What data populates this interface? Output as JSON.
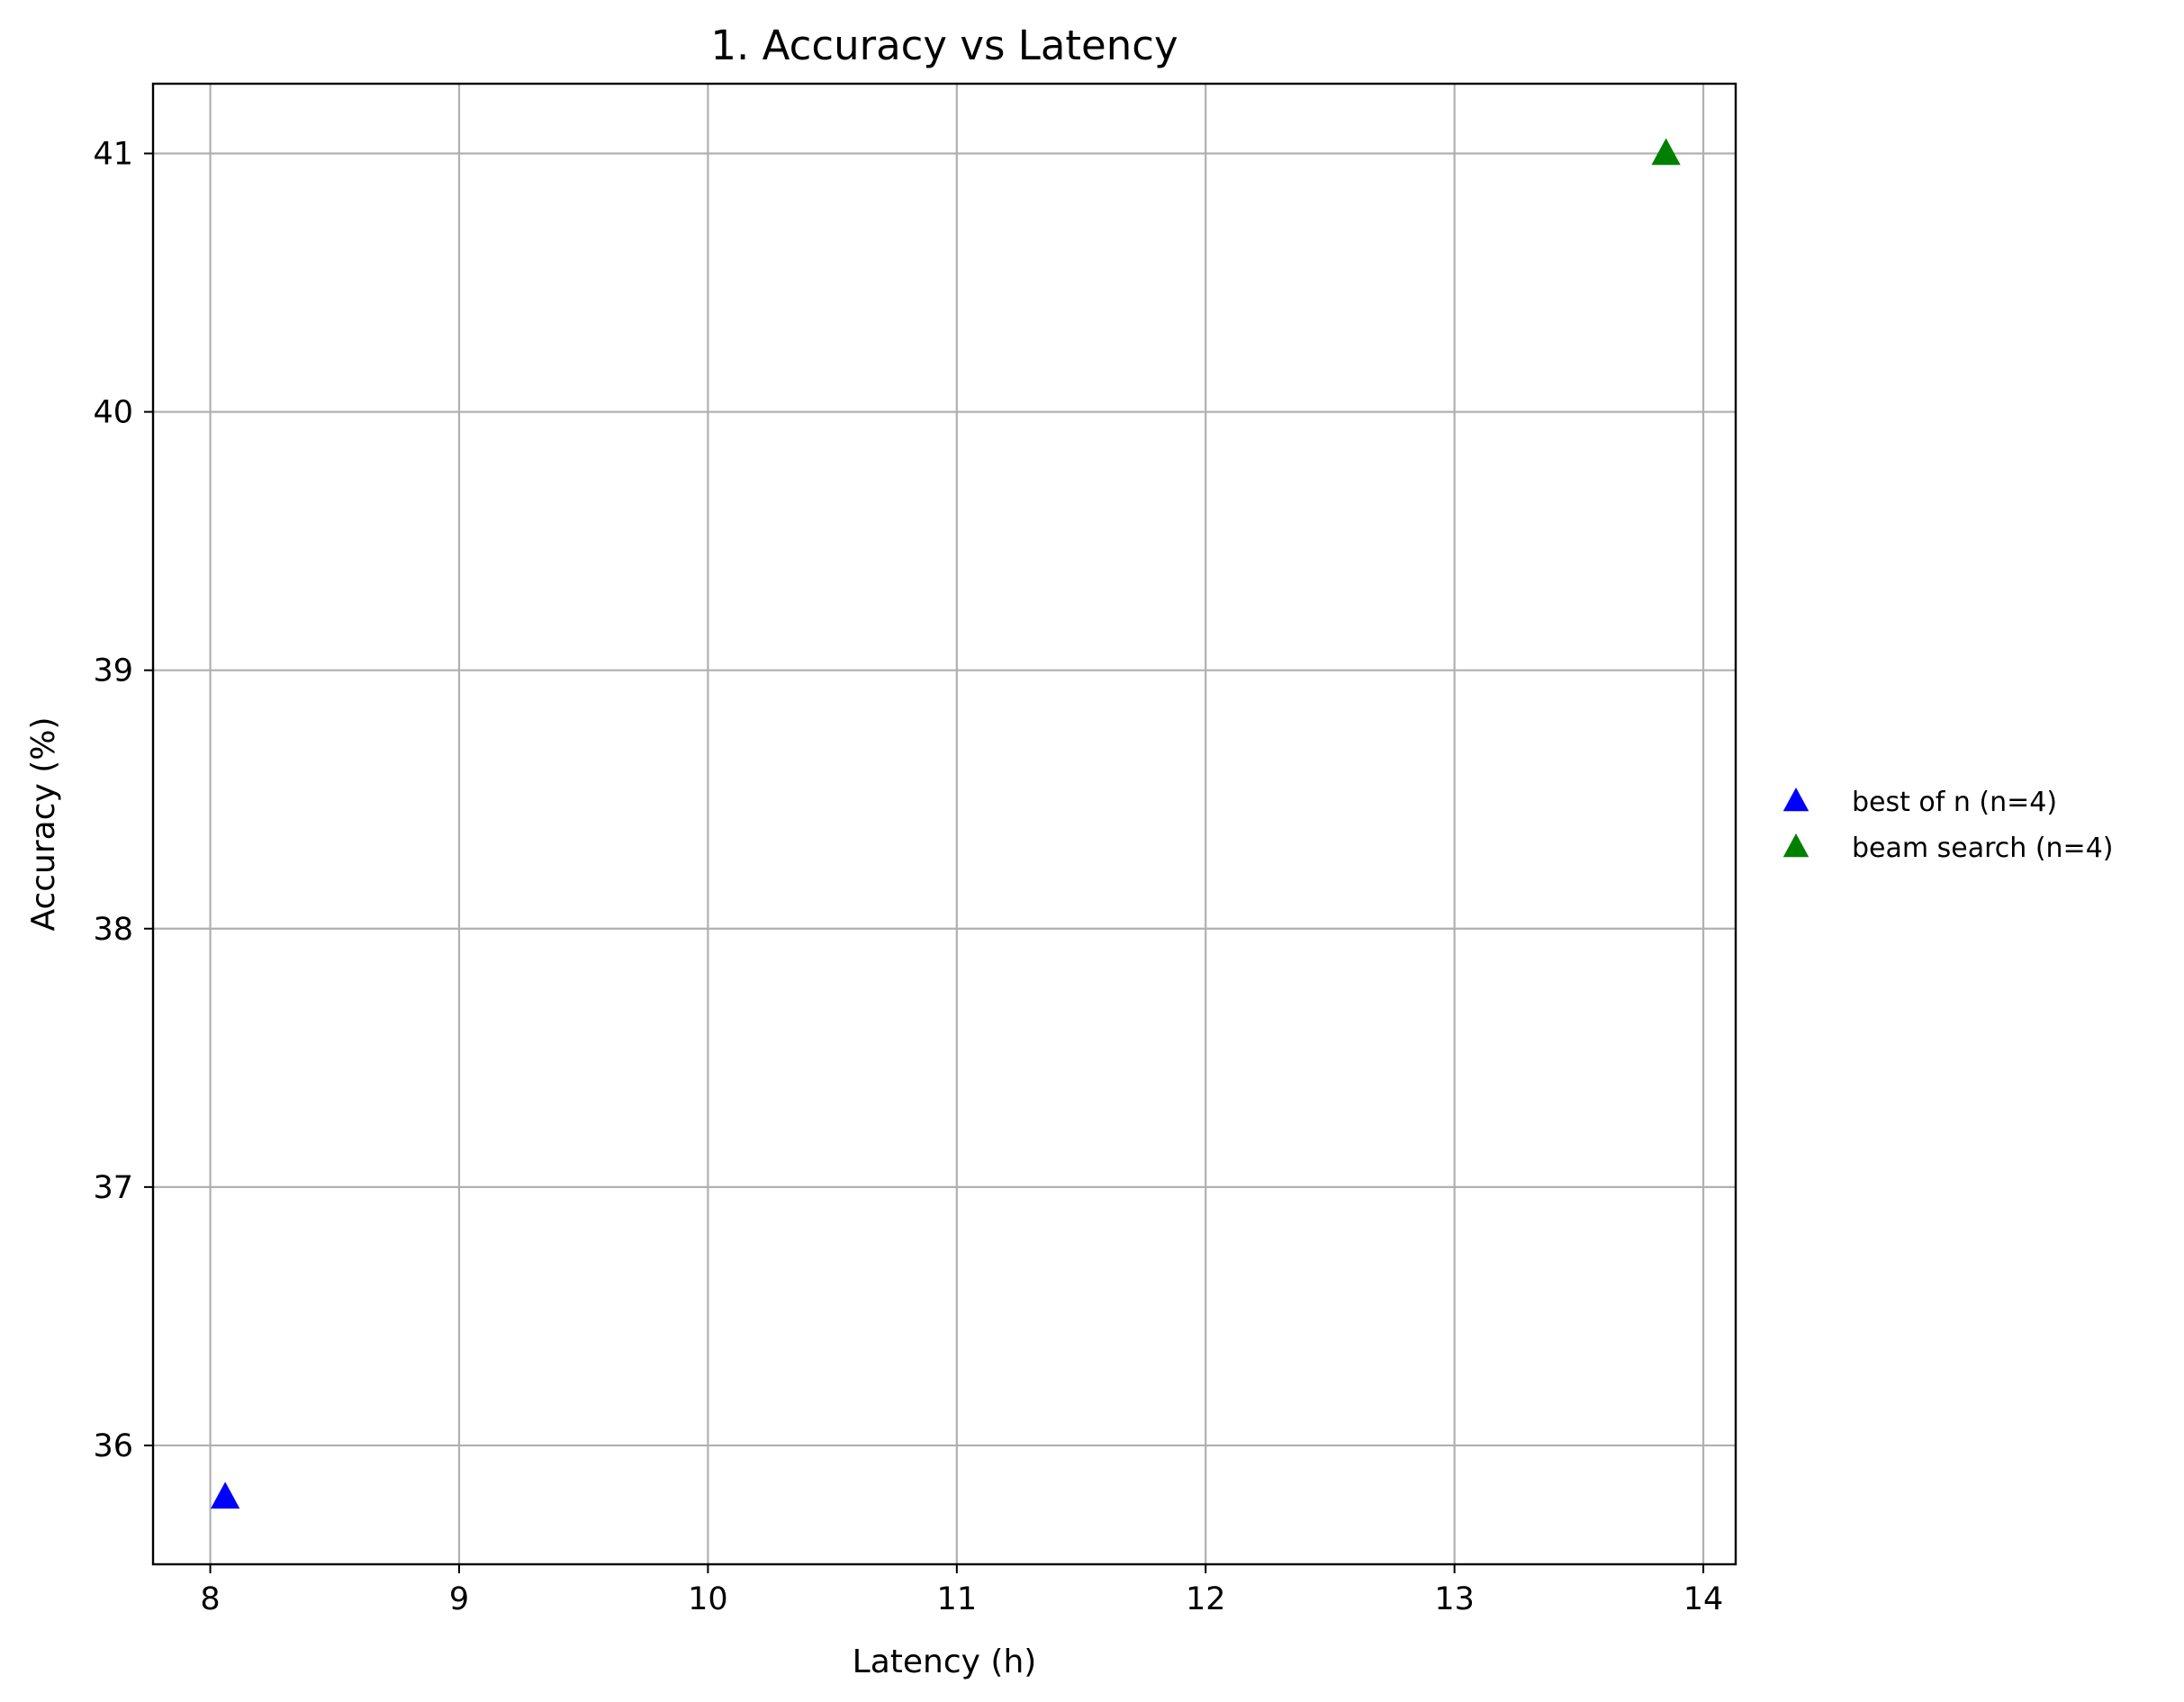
{
  "chart_data": {
    "type": "scatter",
    "title": "1. Accuracy vs Latency",
    "xlabel": "Latency (h)",
    "ylabel": "Accuracy (%)",
    "xlim": [
      7.77,
      14.13
    ],
    "ylim": [
      35.54,
      41.27
    ],
    "xticks": [
      8,
      9,
      10,
      11,
      12,
      13,
      14
    ],
    "yticks": [
      36,
      37,
      38,
      39,
      40,
      41
    ],
    "grid": true,
    "legend_position": "outside-right",
    "series": [
      {
        "name": "best of n (n=4)",
        "marker": "triangle-up",
        "color": "#0000ff",
        "x": [
          8.06
        ],
        "y": [
          35.8
        ]
      },
      {
        "name": "beam search (n=4)",
        "marker": "triangle-up",
        "color": "#008000",
        "x": [
          13.85
        ],
        "y": [
          41.0
        ]
      }
    ]
  }
}
